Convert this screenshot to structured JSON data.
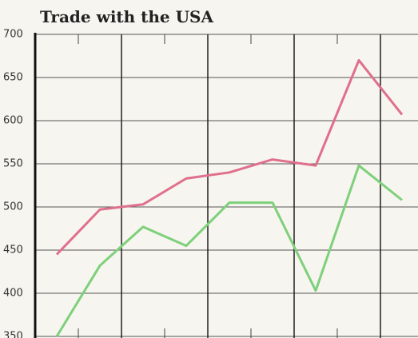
{
  "chart_data": {
    "type": "line",
    "title": "Trade with the USA",
    "categories": [
      null,
      null,
      null,
      null,
      null,
      null,
      null,
      null,
      null
    ],
    "series": [
      {
        "color": "#e06f8c",
        "values": [
          445,
          497,
          503,
          533,
          540,
          555,
          548,
          670,
          607
        ]
      },
      {
        "color": "#7ed07a",
        "values": [
          350,
          432,
          477,
          455,
          505,
          505,
          403,
          548,
          508
        ]
      }
    ],
    "ylim": [
      350,
      700
    ],
    "yticks": [
      350,
      400,
      450,
      500,
      550,
      600,
      650,
      700
    ],
    "grid": true
  }
}
